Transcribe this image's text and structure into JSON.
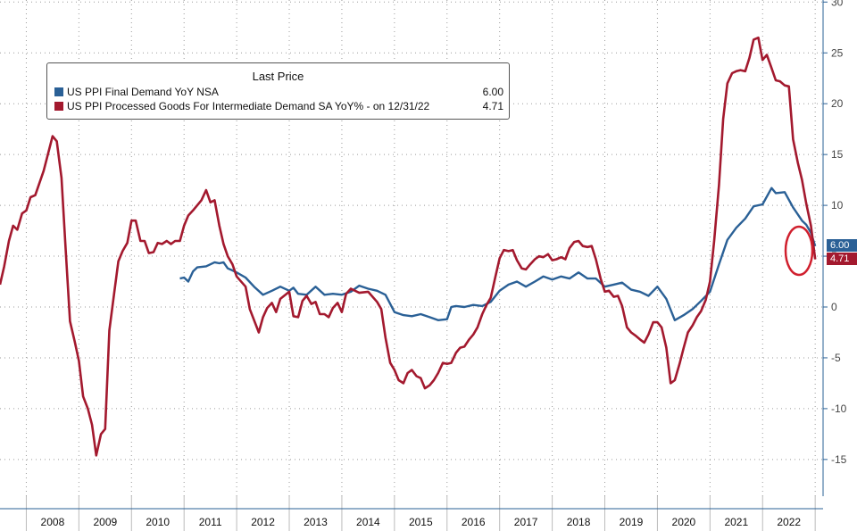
{
  "legend": {
    "header": "Last Price",
    "series": [
      {
        "name": "US PPI Final Demand YoY NSA",
        "value": "6.00",
        "color": "#2a6096"
      },
      {
        "name": "US PPI Processed Goods For Intermediate Demand SA YoY% -   on 12/31/22",
        "value": "4.71",
        "color": "#a3192e"
      }
    ]
  },
  "last_value_tags": {
    "blue": "6.00",
    "red": "4.71"
  },
  "chart_data": {
    "type": "line",
    "title": "",
    "ylim": [
      -18,
      30
    ],
    "yticks": [
      30,
      25,
      20,
      15,
      10,
      5,
      0,
      -5,
      -10,
      -15
    ],
    "ytick_labels": [
      "30",
      "25",
      "20",
      "15",
      "10",
      "5",
      "0",
      "-5",
      "-10",
      "-15"
    ],
    "y_axis_position": "right",
    "grid": true,
    "legend_position": "top-left",
    "x_year_labels": [
      "2008",
      "2009",
      "2010",
      "2011",
      "2012",
      "2013",
      "2014",
      "2015",
      "2016",
      "2017",
      "2018",
      "2019",
      "2020",
      "2021",
      "2022"
    ],
    "series": [
      {
        "name": "US PPI Final Demand YoY NSA",
        "color": "#2a6096",
        "points": [
          [
            2010.92,
            2.8
          ],
          [
            2011.0,
            2.9
          ],
          [
            2011.08,
            2.5
          ],
          [
            2011.17,
            3.5
          ],
          [
            2011.25,
            3.9
          ],
          [
            2011.42,
            4.0
          ],
          [
            2011.58,
            4.4
          ],
          [
            2011.67,
            4.3
          ],
          [
            2011.75,
            4.4
          ],
          [
            2011.83,
            3.8
          ],
          [
            2011.92,
            3.6
          ],
          [
            2012.0,
            3.4
          ],
          [
            2012.17,
            2.9
          ],
          [
            2012.33,
            2.0
          ],
          [
            2012.5,
            1.2
          ],
          [
            2012.67,
            1.6
          ],
          [
            2012.83,
            2.0
          ],
          [
            2013.0,
            1.6
          ],
          [
            2013.08,
            1.9
          ],
          [
            2013.17,
            1.3
          ],
          [
            2013.33,
            1.2
          ],
          [
            2013.5,
            2.0
          ],
          [
            2013.67,
            1.2
          ],
          [
            2013.83,
            1.3
          ],
          [
            2014.0,
            1.2
          ],
          [
            2014.17,
            1.5
          ],
          [
            2014.33,
            2.1
          ],
          [
            2014.5,
            1.8
          ],
          [
            2014.67,
            1.6
          ],
          [
            2014.83,
            1.2
          ],
          [
            2015.0,
            -0.5
          ],
          [
            2015.17,
            -0.8
          ],
          [
            2015.33,
            -0.9
          ],
          [
            2015.5,
            -0.7
          ],
          [
            2015.67,
            -1.0
          ],
          [
            2015.83,
            -1.3
          ],
          [
            2016.0,
            -1.2
          ],
          [
            2016.08,
            0.0
          ],
          [
            2016.17,
            0.1
          ],
          [
            2016.33,
            0.0
          ],
          [
            2016.5,
            0.2
          ],
          [
            2016.67,
            0.1
          ],
          [
            2016.83,
            0.5
          ],
          [
            2017.0,
            1.6
          ],
          [
            2017.17,
            2.2
          ],
          [
            2017.33,
            2.5
          ],
          [
            2017.5,
            2.0
          ],
          [
            2017.67,
            2.5
          ],
          [
            2017.83,
            3.0
          ],
          [
            2018.0,
            2.7
          ],
          [
            2018.17,
            3.0
          ],
          [
            2018.33,
            2.8
          ],
          [
            2018.5,
            3.4
          ],
          [
            2018.67,
            2.8
          ],
          [
            2018.83,
            2.8
          ],
          [
            2019.0,
            2.0
          ],
          [
            2019.17,
            2.2
          ],
          [
            2019.33,
            2.4
          ],
          [
            2019.5,
            1.7
          ],
          [
            2019.67,
            1.5
          ],
          [
            2019.83,
            1.1
          ],
          [
            2020.0,
            2.0
          ],
          [
            2020.17,
            0.8
          ],
          [
            2020.33,
            -1.3
          ],
          [
            2020.5,
            -0.8
          ],
          [
            2020.67,
            -0.2
          ],
          [
            2020.83,
            0.6
          ],
          [
            2021.0,
            1.5
          ],
          [
            2021.17,
            4.2
          ],
          [
            2021.33,
            6.6
          ],
          [
            2021.5,
            7.8
          ],
          [
            2021.67,
            8.7
          ],
          [
            2021.83,
            9.9
          ],
          [
            2022.0,
            10.1
          ],
          [
            2022.17,
            11.7
          ],
          [
            2022.25,
            11.2
          ],
          [
            2022.42,
            11.3
          ],
          [
            2022.58,
            9.8
          ],
          [
            2022.75,
            8.5
          ],
          [
            2022.83,
            8.1
          ],
          [
            2022.92,
            7.3
          ],
          [
            2023.0,
            6.0
          ]
        ]
      },
      {
        "name": "US PPI Processed Goods For Intermediate Demand SA YoY% -   on 12/31/22",
        "color": "#a3192e",
        "points": [
          [
            2007.5,
            2.2
          ],
          [
            2007.58,
            4.0
          ],
          [
            2007.67,
            6.5
          ],
          [
            2007.75,
            8.0
          ],
          [
            2007.83,
            7.6
          ],
          [
            2007.92,
            9.2
          ],
          [
            2008.0,
            9.5
          ],
          [
            2008.08,
            10.8
          ],
          [
            2008.17,
            11.0
          ],
          [
            2008.33,
            13.4
          ],
          [
            2008.5,
            16.8
          ],
          [
            2008.58,
            16.3
          ],
          [
            2008.67,
            12.7
          ],
          [
            2008.75,
            5.6
          ],
          [
            2008.83,
            -1.4
          ],
          [
            2008.92,
            -3.4
          ],
          [
            2009.0,
            -5.3
          ],
          [
            2009.08,
            -8.8
          ],
          [
            2009.17,
            -10.0
          ],
          [
            2009.25,
            -11.6
          ],
          [
            2009.33,
            -14.6
          ],
          [
            2009.42,
            -12.5
          ],
          [
            2009.5,
            -12.0
          ],
          [
            2009.58,
            -2.3
          ],
          [
            2009.67,
            1.3
          ],
          [
            2009.75,
            4.5
          ],
          [
            2009.83,
            5.5
          ],
          [
            2009.92,
            6.3
          ],
          [
            2010.0,
            8.5
          ],
          [
            2010.08,
            8.5
          ],
          [
            2010.17,
            6.5
          ],
          [
            2010.25,
            6.5
          ],
          [
            2010.33,
            5.3
          ],
          [
            2010.42,
            5.4
          ],
          [
            2010.5,
            6.3
          ],
          [
            2010.58,
            6.2
          ],
          [
            2010.67,
            6.5
          ],
          [
            2010.75,
            6.2
          ],
          [
            2010.83,
            6.5
          ],
          [
            2010.92,
            6.5
          ],
          [
            2011.0,
            8.0
          ],
          [
            2011.08,
            9.0
          ],
          [
            2011.17,
            9.5
          ],
          [
            2011.33,
            10.5
          ],
          [
            2011.42,
            11.5
          ],
          [
            2011.5,
            10.3
          ],
          [
            2011.58,
            10.5
          ],
          [
            2011.67,
            8.0
          ],
          [
            2011.75,
            6.2
          ],
          [
            2011.83,
            5.0
          ],
          [
            2011.92,
            4.2
          ],
          [
            2012.0,
            3.0
          ],
          [
            2012.17,
            2.0
          ],
          [
            2012.25,
            -0.2
          ],
          [
            2012.42,
            -2.5
          ],
          [
            2012.5,
            -1.0
          ],
          [
            2012.58,
            -0.1
          ],
          [
            2012.67,
            0.4
          ],
          [
            2012.75,
            -0.5
          ],
          [
            2012.83,
            0.8
          ],
          [
            2013.0,
            1.5
          ],
          [
            2013.08,
            -0.9
          ],
          [
            2013.17,
            -1.0
          ],
          [
            2013.25,
            0.6
          ],
          [
            2013.33,
            1.1
          ],
          [
            2013.42,
            0.3
          ],
          [
            2013.5,
            0.5
          ],
          [
            2013.58,
            -0.7
          ],
          [
            2013.67,
            -0.7
          ],
          [
            2013.75,
            -1.0
          ],
          [
            2013.83,
            -0.1
          ],
          [
            2013.92,
            0.4
          ],
          [
            2014.0,
            -0.5
          ],
          [
            2014.08,
            1.3
          ],
          [
            2014.17,
            1.8
          ],
          [
            2014.33,
            1.4
          ],
          [
            2014.5,
            1.5
          ],
          [
            2014.67,
            0.5
          ],
          [
            2014.75,
            -0.2
          ],
          [
            2014.83,
            -3.0
          ],
          [
            2014.92,
            -5.5
          ],
          [
            2015.0,
            -6.2
          ],
          [
            2015.08,
            -7.2
          ],
          [
            2015.17,
            -7.5
          ],
          [
            2015.25,
            -6.5
          ],
          [
            2015.33,
            -6.2
          ],
          [
            2015.42,
            -6.8
          ],
          [
            2015.5,
            -7.0
          ],
          [
            2015.58,
            -8.0
          ],
          [
            2015.67,
            -7.7
          ],
          [
            2015.75,
            -7.2
          ],
          [
            2015.83,
            -6.5
          ],
          [
            2015.92,
            -5.5
          ],
          [
            2016.0,
            -5.6
          ],
          [
            2016.08,
            -5.5
          ],
          [
            2016.17,
            -4.5
          ],
          [
            2016.25,
            -4.0
          ],
          [
            2016.33,
            -3.9
          ],
          [
            2016.42,
            -3.2
          ],
          [
            2016.5,
            -2.7
          ],
          [
            2016.58,
            -2.0
          ],
          [
            2016.67,
            -0.7
          ],
          [
            2016.75,
            0.2
          ],
          [
            2016.83,
            0.9
          ],
          [
            2016.92,
            3.0
          ],
          [
            2017.0,
            4.8
          ],
          [
            2017.08,
            5.6
          ],
          [
            2017.17,
            5.5
          ],
          [
            2017.25,
            5.6
          ],
          [
            2017.33,
            4.6
          ],
          [
            2017.42,
            3.8
          ],
          [
            2017.5,
            3.7
          ],
          [
            2017.58,
            4.2
          ],
          [
            2017.67,
            4.7
          ],
          [
            2017.75,
            5.0
          ],
          [
            2017.83,
            4.9
          ],
          [
            2017.92,
            5.2
          ],
          [
            2018.0,
            4.6
          ],
          [
            2018.08,
            4.7
          ],
          [
            2018.17,
            4.9
          ],
          [
            2018.25,
            4.7
          ],
          [
            2018.33,
            5.8
          ],
          [
            2018.42,
            6.4
          ],
          [
            2018.5,
            6.5
          ],
          [
            2018.58,
            6.0
          ],
          [
            2018.67,
            5.9
          ],
          [
            2018.75,
            6.0
          ],
          [
            2018.83,
            4.7
          ],
          [
            2018.92,
            2.8
          ],
          [
            2019.0,
            1.5
          ],
          [
            2019.08,
            1.6
          ],
          [
            2019.17,
            1.0
          ],
          [
            2019.25,
            1.1
          ],
          [
            2019.33,
            0.1
          ],
          [
            2019.42,
            -2.0
          ],
          [
            2019.5,
            -2.5
          ],
          [
            2019.58,
            -2.8
          ],
          [
            2019.67,
            -3.2
          ],
          [
            2019.75,
            -3.5
          ],
          [
            2019.83,
            -2.7
          ],
          [
            2019.92,
            -1.5
          ],
          [
            2020.0,
            -1.5
          ],
          [
            2020.08,
            -2.0
          ],
          [
            2020.17,
            -4.0
          ],
          [
            2020.25,
            -7.5
          ],
          [
            2020.33,
            -7.2
          ],
          [
            2020.42,
            -5.6
          ],
          [
            2020.5,
            -4.0
          ],
          [
            2020.58,
            -2.5
          ],
          [
            2020.67,
            -1.8
          ],
          [
            2020.75,
            -1.0
          ],
          [
            2020.83,
            -0.4
          ],
          [
            2020.92,
            0.7
          ],
          [
            2021.0,
            2.5
          ],
          [
            2021.08,
            6.5
          ],
          [
            2021.17,
            12.0
          ],
          [
            2021.25,
            18.5
          ],
          [
            2021.33,
            22.0
          ],
          [
            2021.42,
            23.0
          ],
          [
            2021.5,
            23.2
          ],
          [
            2021.58,
            23.3
          ],
          [
            2021.67,
            23.2
          ],
          [
            2021.75,
            24.5
          ],
          [
            2021.83,
            26.3
          ],
          [
            2021.92,
            26.5
          ],
          [
            2022.0,
            24.3
          ],
          [
            2022.08,
            24.8
          ],
          [
            2022.17,
            23.5
          ],
          [
            2022.25,
            22.3
          ],
          [
            2022.33,
            22.2
          ],
          [
            2022.42,
            21.8
          ],
          [
            2022.5,
            21.7
          ],
          [
            2022.58,
            16.5
          ],
          [
            2022.67,
            14.2
          ],
          [
            2022.75,
            12.5
          ],
          [
            2022.83,
            10.2
          ],
          [
            2022.92,
            8.0
          ],
          [
            2023.0,
            4.7
          ]
        ]
      }
    ]
  }
}
